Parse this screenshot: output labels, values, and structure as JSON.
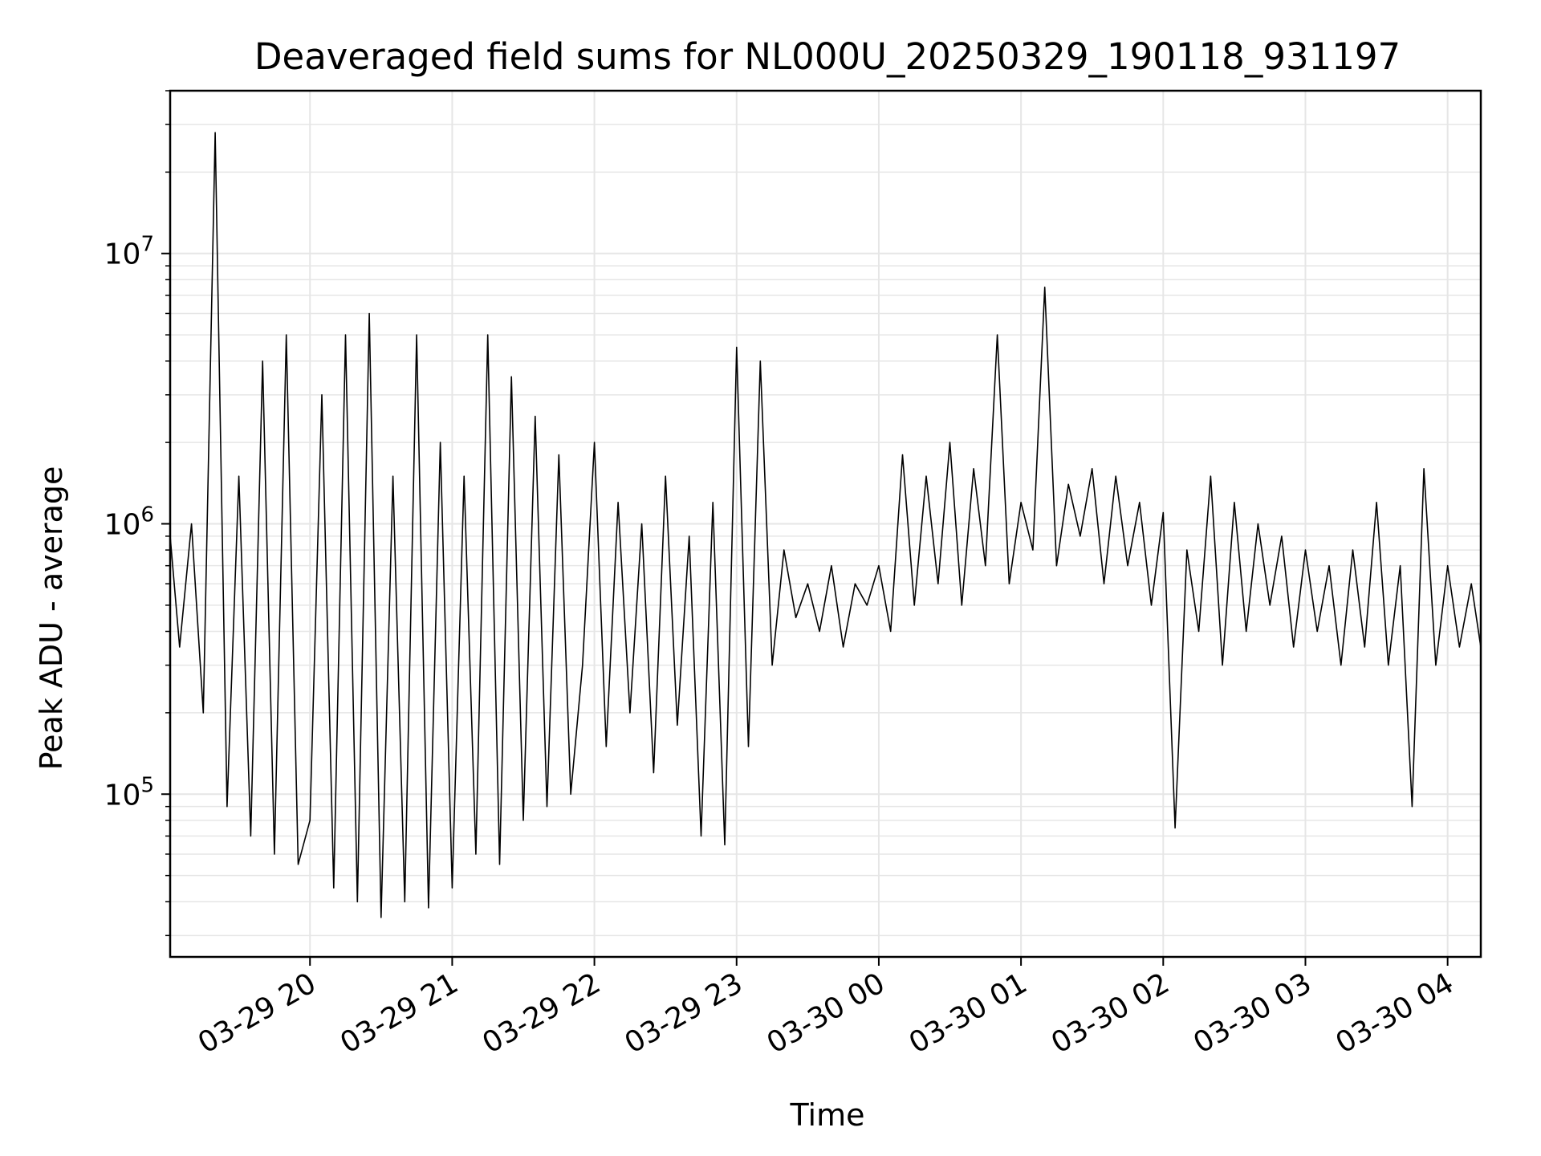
{
  "chart_data": {
    "type": "line",
    "title": "Deaveraged field sums for NL000U_20250329_190118_931197",
    "xlabel": "Time",
    "ylabel": "Peak ADU - average",
    "y_scale": "log",
    "grid": true,
    "line_color": "#000000",
    "grid_color": "#e6e6e6",
    "xlim": [
      "2025-03-29 19:01",
      "2025-03-30 04:14"
    ],
    "ylim": [
      25000,
      40000000
    ],
    "x_ticks": [
      {
        "value": "2025-03-29 20:00",
        "label": "03-29 20"
      },
      {
        "value": "2025-03-29 21:00",
        "label": "03-29 21"
      },
      {
        "value": "2025-03-29 22:00",
        "label": "03-29 22"
      },
      {
        "value": "2025-03-29 23:00",
        "label": "03-29 23"
      },
      {
        "value": "2025-03-30 00:00",
        "label": "03-30 00"
      },
      {
        "value": "2025-03-30 01:00",
        "label": "03-30 01"
      },
      {
        "value": "2025-03-30 02:00",
        "label": "03-30 02"
      },
      {
        "value": "2025-03-30 03:00",
        "label": "03-30 03"
      },
      {
        "value": "2025-03-30 04:00",
        "label": "03-30 04"
      }
    ],
    "y_ticks": [
      {
        "value": 100000,
        "base": "10",
        "exp": "5"
      },
      {
        "value": 1000000,
        "base": "10",
        "exp": "6"
      },
      {
        "value": 10000000,
        "base": "10",
        "exp": "7"
      }
    ],
    "series": [
      {
        "x": [
          "2025-03-29 19:01",
          "2025-03-29 19:05",
          "2025-03-29 19:10",
          "2025-03-29 19:15",
          "2025-03-29 19:20",
          "2025-03-29 19:25",
          "2025-03-29 19:30",
          "2025-03-29 19:35",
          "2025-03-29 19:40",
          "2025-03-29 19:45",
          "2025-03-29 19:50",
          "2025-03-29 19:55",
          "2025-03-29 20:00",
          "2025-03-29 20:05",
          "2025-03-29 20:10",
          "2025-03-29 20:15",
          "2025-03-29 20:20",
          "2025-03-29 20:25",
          "2025-03-29 20:30",
          "2025-03-29 20:35",
          "2025-03-29 20:40",
          "2025-03-29 20:45",
          "2025-03-29 20:50",
          "2025-03-29 20:55",
          "2025-03-29 21:00",
          "2025-03-29 21:05",
          "2025-03-29 21:10",
          "2025-03-29 21:15",
          "2025-03-29 21:20",
          "2025-03-29 21:25",
          "2025-03-29 21:30",
          "2025-03-29 21:35",
          "2025-03-29 21:40",
          "2025-03-29 21:45",
          "2025-03-29 21:50",
          "2025-03-29 21:55",
          "2025-03-29 22:00",
          "2025-03-29 22:05",
          "2025-03-29 22:10",
          "2025-03-29 22:15",
          "2025-03-29 22:20",
          "2025-03-29 22:25",
          "2025-03-29 22:30",
          "2025-03-29 22:35",
          "2025-03-29 22:40",
          "2025-03-29 22:45",
          "2025-03-29 22:50",
          "2025-03-29 22:55",
          "2025-03-29 23:00",
          "2025-03-29 23:05",
          "2025-03-29 23:10",
          "2025-03-29 23:15",
          "2025-03-29 23:20",
          "2025-03-29 23:25",
          "2025-03-29 23:30",
          "2025-03-29 23:35",
          "2025-03-29 23:40",
          "2025-03-29 23:45",
          "2025-03-29 23:50",
          "2025-03-29 23:55",
          "2025-03-30 00:00",
          "2025-03-30 00:05",
          "2025-03-30 00:10",
          "2025-03-30 00:15",
          "2025-03-30 00:20",
          "2025-03-30 00:25",
          "2025-03-30 00:30",
          "2025-03-30 00:35",
          "2025-03-30 00:40",
          "2025-03-30 00:45",
          "2025-03-30 00:50",
          "2025-03-30 00:55",
          "2025-03-30 01:00",
          "2025-03-30 01:05",
          "2025-03-30 01:10",
          "2025-03-30 01:15",
          "2025-03-30 01:20",
          "2025-03-30 01:25",
          "2025-03-30 01:30",
          "2025-03-30 01:35",
          "2025-03-30 01:40",
          "2025-03-30 01:45",
          "2025-03-30 01:50",
          "2025-03-30 01:55",
          "2025-03-30 02:00",
          "2025-03-30 02:05",
          "2025-03-30 02:10",
          "2025-03-30 02:15",
          "2025-03-30 02:20",
          "2025-03-30 02:25",
          "2025-03-30 02:30",
          "2025-03-30 02:35",
          "2025-03-30 02:40",
          "2025-03-30 02:45",
          "2025-03-30 02:50",
          "2025-03-30 02:55",
          "2025-03-30 03:00",
          "2025-03-30 03:05",
          "2025-03-30 03:10",
          "2025-03-30 03:15",
          "2025-03-30 03:20",
          "2025-03-30 03:25",
          "2025-03-30 03:30",
          "2025-03-30 03:35",
          "2025-03-30 03:40",
          "2025-03-30 03:45",
          "2025-03-30 03:50",
          "2025-03-30 03:55",
          "2025-03-30 04:00",
          "2025-03-30 04:05",
          "2025-03-30 04:10",
          "2025-03-30 04:14"
        ],
        "y": [
          900000,
          350000,
          1000000,
          200000,
          28000000,
          90000,
          1500000,
          70000,
          4000000,
          60000,
          5000000,
          55000,
          80000,
          3000000,
          45000,
          5000000,
          40000,
          6000000,
          35000,
          1500000,
          40000,
          5000000,
          38000,
          2000000,
          45000,
          1500000,
          60000,
          5000000,
          55000,
          3500000,
          80000,
          2500000,
          90000,
          1800000,
          100000,
          300000,
          2000000,
          150000,
          1200000,
          200000,
          1000000,
          120000,
          1500000,
          180000,
          900000,
          70000,
          1200000,
          65000,
          4500000,
          150000,
          4000000,
          300000,
          800000,
          450000,
          600000,
          400000,
          700000,
          350000,
          600000,
          500000,
          700000,
          400000,
          1800000,
          500000,
          1500000,
          600000,
          2000000,
          500000,
          1600000,
          700000,
          5000000,
          600000,
          1200000,
          800000,
          7500000,
          700000,
          1400000,
          900000,
          1600000,
          600000,
          1500000,
          700000,
          1200000,
          500000,
          1100000,
          75000,
          800000,
          400000,
          1500000,
          300000,
          1200000,
          400000,
          1000000,
          500000,
          900000,
          350000,
          800000,
          400000,
          700000,
          300000,
          800000,
          350000,
          1200000,
          300000,
          700000,
          90000,
          1600000,
          300000,
          700000,
          350000,
          600000,
          350000
        ]
      }
    ]
  }
}
